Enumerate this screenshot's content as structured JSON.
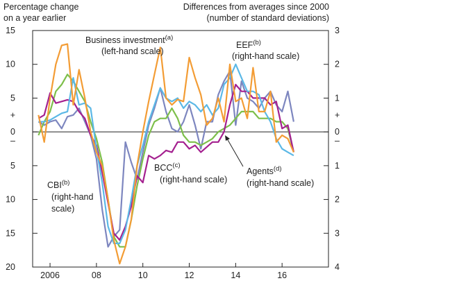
{
  "chart_data": {
    "type": "line",
    "header_left": [
      "Percentage change",
      "on a year earlier"
    ],
    "header_right": [
      "Differences from averages since 2000",
      "(number of standard deviations)"
    ],
    "x": [
      2005.5,
      2005.75,
      2006,
      2006.25,
      2006.5,
      2006.75,
      2007,
      2007.25,
      2007.5,
      2007.75,
      2008,
      2008.25,
      2008.5,
      2008.75,
      2009,
      2009.25,
      2009.5,
      2009.75,
      2010,
      2010.25,
      2010.5,
      2010.75,
      2011,
      2011.25,
      2011.5,
      2011.75,
      2012,
      2012.25,
      2012.5,
      2012.75,
      2013,
      2013.25,
      2013.5,
      2013.75,
      2014,
      2014.25,
      2014.5,
      2014.75,
      2015,
      2015.25,
      2015.5,
      2015.75,
      2016,
      2016.25,
      2016.5
    ],
    "xlim": [
      2005.25,
      2018
    ],
    "xticks": [
      2006,
      {
        "value": 2008,
        "label": "08"
      },
      {
        "value": 2010,
        "label": "10"
      },
      {
        "value": 2012,
        "label": "12"
      },
      {
        "value": 2014,
        "label": "14"
      },
      {
        "value": 2016,
        "label": "16"
      }
    ],
    "ylim": [
      -20,
      15
    ],
    "yticks": [
      15,
      10,
      5,
      0,
      {
        "value": -5,
        "label": "5"
      },
      {
        "value": -10,
        "label": "10"
      },
      {
        "value": -15,
        "label": "15"
      },
      {
        "value": -20,
        "label": "20"
      }
    ],
    "y2lim": [
      -4,
      3
    ],
    "y2ticks": [
      3,
      2,
      1,
      0,
      {
        "value": -1,
        "label": "1"
      },
      {
        "value": -2,
        "label": "2"
      },
      {
        "value": -3,
        "label": "3"
      },
      {
        "value": -4,
        "label": "4"
      }
    ],
    "sign_labels": [
      "+",
      "–"
    ],
    "series": [
      {
        "name": "CBI",
        "color": "#7d86bf",
        "axis": "y2",
        "values": [
          0.3,
          0.2,
          0.3,
          0.35,
          0.1,
          0.45,
          0.5,
          0.7,
          0.3,
          -0.1,
          -0.8,
          -2.3,
          -3.4,
          -3.1,
          -2.9,
          -0.3,
          -0.9,
          -1.4,
          -0.6,
          0.2,
          0.7,
          1.3,
          0.6,
          0.1,
          0.0,
          0.3,
          0.8,
          0.2,
          -0.5,
          0.3,
          0.3,
          1.1,
          1.5,
          1.8,
          0.2,
          1.5,
          1.0,
          0.9,
          0.7,
          1.0,
          1.2,
          0.8,
          0.6,
          1.2,
          0.3
        ]
      },
      {
        "name": "Agents",
        "color": "#7dbf4a",
        "axis": "y2",
        "values": [
          -0.1,
          0.3,
          0.6,
          1.2,
          1.4,
          1.7,
          1.5,
          1.2,
          0.9,
          0.3,
          -0.2,
          -0.9,
          -2.0,
          -3.1,
          -3.4,
          -3.4,
          -2.6,
          -1.6,
          -0.8,
          -0.1,
          0.3,
          0.4,
          0.4,
          0.7,
          0.4,
          -0.1,
          -0.3,
          -0.3,
          -0.4,
          -0.3,
          -0.2,
          0.0,
          0.1,
          0.2,
          0.4,
          0.6,
          0.6,
          0.6,
          0.4,
          0.4,
          0.4,
          0.3,
          0.3,
          0.1,
          -0.6
        ]
      },
      {
        "name": "BCC",
        "color": "#a4208f",
        "axis": "y2",
        "values": [
          0.4,
          0.5,
          1.15,
          0.85,
          0.9,
          0.95,
          0.9,
          0.6,
          0.4,
          -0.1,
          -0.4,
          -1.2,
          -2.1,
          -3.0,
          -3.2,
          -2.8,
          -2.2,
          -1.3,
          -1.5,
          -0.7,
          -0.8,
          -0.7,
          -0.55,
          -0.6,
          -0.3,
          -0.3,
          -0.5,
          -0.4,
          -0.6,
          -0.45,
          -0.3,
          -0.3,
          0.0,
          0.8,
          1.4,
          1.2,
          1.2,
          1.0,
          1.0,
          1.0,
          0.8,
          0.9,
          0.1,
          0.2,
          -0.6
        ]
      },
      {
        "name": "EEF",
        "color": "#5bb8e6",
        "axis": "y2",
        "values": [
          0.3,
          0.3,
          0.35,
          0.45,
          0.55,
          0.6,
          1.6,
          0.8,
          0.85,
          0.7,
          -0.5,
          -1.5,
          -2.8,
          -3.3,
          -3.3,
          -2.9,
          -2.0,
          -1.0,
          -0.4,
          0.3,
          0.8,
          1.3,
          1.0,
          0.9,
          1.0,
          0.7,
          0.9,
          0.8,
          0.6,
          0.8,
          0.5,
          0.7,
          1.4,
          1.6,
          2.0,
          1.6,
          1.2,
          1.2,
          1.1,
          0.6,
          0.3,
          -0.2,
          -0.5,
          -0.6,
          -0.7
        ]
      },
      {
        "name": "Business investment",
        "color": "#f39c34",
        "values": [
          2.5,
          -1.5,
          5,
          10,
          12.8,
          13,
          4,
          9.2,
          5,
          0,
          -3,
          -5,
          -10,
          -16,
          -19.5,
          -17,
          -13,
          -5,
          0,
          4.5,
          8.5,
          12.5,
          5,
          4,
          4.8,
          4.5,
          11,
          8,
          5.5,
          1,
          2,
          5,
          1.5,
          10,
          4.5,
          5,
          2,
          9.5,
          3,
          3,
          6,
          -1.5,
          -0.5,
          -1,
          -3
        ]
      }
    ],
    "annotations": [
      {
        "lines": [
          "Business investment",
          "(left-hand scale)"
        ],
        "sup": "(a)"
      },
      {
        "lines": [
          "EEF",
          "(right-hand scale)"
        ],
        "sup": "(b)"
      },
      {
        "lines": [
          "BCC",
          "(right-hand scale)"
        ],
        "sup": "(c)"
      },
      {
        "lines": [
          "Agents",
          "(right-hand scale)"
        ],
        "sup": "(d)"
      },
      {
        "lines": [
          "CBI",
          "(right-hand",
          "scale)"
        ],
        "sup": "(b)"
      }
    ]
  }
}
